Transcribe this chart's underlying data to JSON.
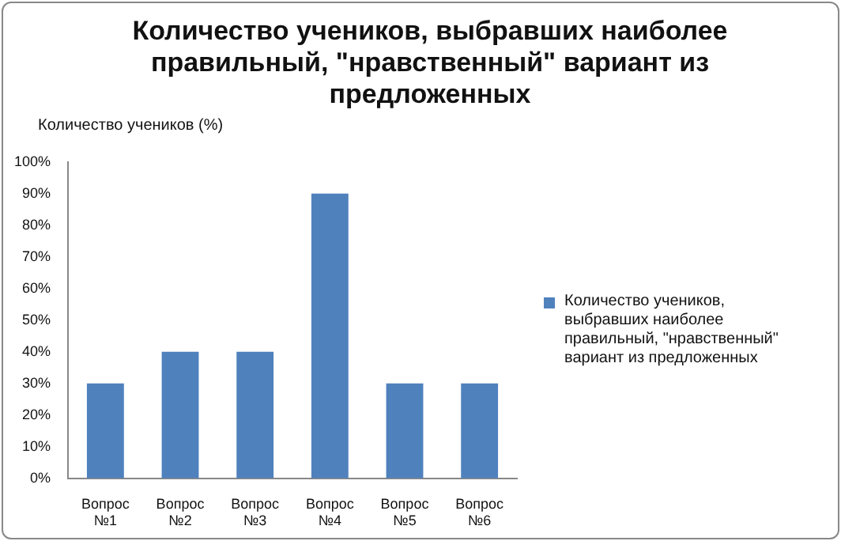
{
  "chart_data": {
    "type": "bar",
    "title": "Количество учеников, выбравших наиболее правильный, \"нравственный\" вариант из предложенных",
    "ylabel": "Количество учеников (%)",
    "categories": [
      "Вопрос №1",
      "Вопрос №2",
      "Вопрос №3",
      "Вопрос №4",
      "Вопрос №5",
      "Вопрос №6"
    ],
    "series": [
      {
        "name": "Количество учеников, выбравших наиболее правильный, \"нравственный\" вариант из предложенных",
        "color": "#4f81bd",
        "values": [
          30,
          40,
          40,
          90,
          30,
          30
        ]
      }
    ],
    "ylim": [
      0,
      100
    ],
    "yticks": [
      {
        "value": 0,
        "label": "0%"
      },
      {
        "value": 10,
        "label": "10%"
      },
      {
        "value": 20,
        "label": "20%"
      },
      {
        "value": 30,
        "label": "30%"
      },
      {
        "value": 40,
        "label": "40%"
      },
      {
        "value": 50,
        "label": "50%"
      },
      {
        "value": 60,
        "label": "60%"
      },
      {
        "value": 70,
        "label": "70%"
      },
      {
        "value": 80,
        "label": "80%"
      },
      {
        "value": 90,
        "label": "90%"
      },
      {
        "value": 100,
        "label": "100%"
      }
    ],
    "grid": false,
    "legend": "right"
  }
}
